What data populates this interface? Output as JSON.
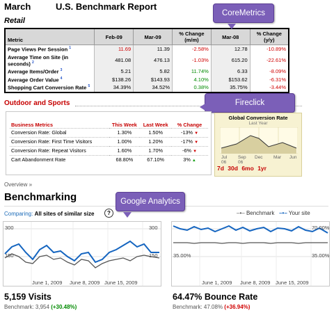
{
  "header": {
    "month": "March",
    "title": "U.S. Benchmark Report",
    "section": "Retail"
  },
  "callouts": {
    "coremetrics": "CoreMetrics",
    "fireclick": "Fireclick",
    "google": "Google Analytics"
  },
  "retail_table": {
    "headers": [
      "Metric",
      "Feb-09",
      "Mar-09",
      "% Change (m/m)",
      "Mar-08",
      "% Change (y/y)"
    ],
    "rows": [
      {
        "metric": "Page Views Per Session",
        "note": "1",
        "feb": "11.69",
        "mar": "11.39",
        "mm": "-2.58%",
        "mar08": "12.78",
        "yy": "-10.89%"
      },
      {
        "metric": "Average Time on Site (in seconds)",
        "note": "2",
        "feb": "481.08",
        "mar": "476.13",
        "mm": "-1.03%",
        "mar08": "615.20",
        "yy": "-22.61%"
      },
      {
        "metric": "Average Items/Order",
        "note": "3",
        "feb": "5.21",
        "mar": "5.82",
        "mm": "11.74%",
        "mar08": "6.33",
        "yy": "-8.09%"
      },
      {
        "metric": "Average Order Value",
        "note": "4",
        "feb": "$138.26",
        "mar": "$143.93",
        "mm": "4.10%",
        "mar08": "$153.62",
        "yy": "-6.31%"
      },
      {
        "metric": "Shopping Cart Conversion Rate",
        "note": "5",
        "feb": "34.39%",
        "mar": "34.52%",
        "mm": "0.38%",
        "mar08": "35.75%",
        "yy": "-3.44%"
      }
    ]
  },
  "outdoor": {
    "title": "Outdoor and Sports",
    "headers": {
      "metric": "Business Metrics",
      "this": "This Week",
      "last": "Last Week",
      "change": "% Change"
    },
    "rows": [
      {
        "metric": "Conversion Rate: Global",
        "this": "1.30%",
        "last": "1.50%",
        "change": "-13%",
        "dir": "down"
      },
      {
        "metric": "Conversion Rate: First Time Visitors",
        "this": "1.00%",
        "last": "1.20%",
        "change": "-17%",
        "dir": "down"
      },
      {
        "metric": "Conversion Rate: Repeat Visitors",
        "this": "1.60%",
        "last": "1.70%",
        "change": "-6%",
        "dir": "down"
      },
      {
        "metric": "Cart Abandonment Rate",
        "this": "68.80%",
        "last": "67.10%",
        "change": "3%",
        "dir": "up"
      }
    ],
    "global_chart": {
      "title": "Global Conversion Rate",
      "subtitle": "Last Year",
      "x_labels": [
        "Jul",
        "Sep",
        "Dec",
        "Mar",
        "Jun"
      ],
      "x_sub": [
        "06",
        "06"
      ],
      "tabs": [
        "7d",
        "30d",
        "6mo",
        "1yr"
      ]
    }
  },
  "overview": {
    "link": "Overview »",
    "title": "Benchmarking",
    "comparing_label": "Comparing:",
    "comparing_value": "All sites of similar size",
    "help": "?",
    "legend_benchmark": "Benchmark",
    "legend_yoursite": "Your site"
  },
  "visits": {
    "y_top": "300",
    "y_mid": "150",
    "y_top_right": "300",
    "y_mid_right": "150",
    "x_labels": [
      "June 1, 2009",
      "June 8, 2009",
      "June 15, 2009"
    ],
    "value": "5,159 Visits",
    "benchmark_label": "Benchmark:",
    "benchmark_value": "3,954",
    "delta": "(+30.48%)"
  },
  "bounce": {
    "y_top_right": "70.00%",
    "y_mid_left": "35.00%",
    "y_mid_right": "35.00%",
    "x_labels": [
      "June 1, 2009",
      "June 8, 2009",
      "June 15, 2009"
    ],
    "value": "64.47% Bounce Rate",
    "benchmark_label": "Benchmark:",
    "benchmark_value": "47.08%",
    "delta": "(+36.94%)"
  },
  "colors": {
    "negative": "#d00000",
    "positive": "#008a00",
    "callout": "#7b5fb8",
    "your_site": "#1565c0",
    "benchmark": "#555555",
    "link": "#1a6ab8"
  }
}
